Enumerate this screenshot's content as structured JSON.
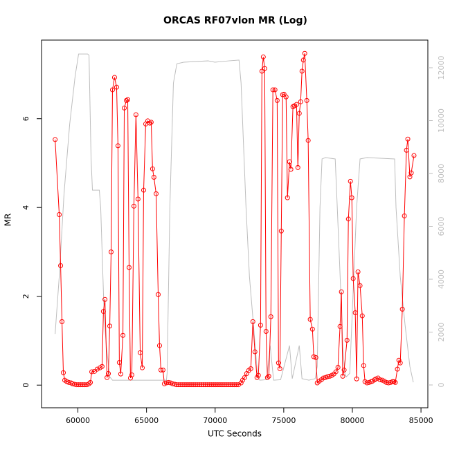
{
  "chart_data": {
    "type": "line",
    "title": "ORCAS RF07vlon MR (Log)",
    "xlabel": "UTC Seconds",
    "ylabel": "MR",
    "xlim": [
      57350,
      85500
    ],
    "xticks": [
      60000,
      65000,
      70000,
      75000,
      80000,
      85000
    ],
    "ylim": [
      -0.51,
      7.77
    ],
    "yticks": [
      0,
      2,
      4,
      6
    ],
    "y2lim": [
      -863,
      13046
    ],
    "y2ticks": [
      0,
      2000,
      4000,
      6000,
      8000,
      10000,
      12000
    ],
    "series": [
      {
        "color": "#bebebe",
        "axis": "y2",
        "markers": false,
        "x": [
          58340,
          58640,
          58990,
          59400,
          59800,
          60050,
          60710,
          60810,
          60960,
          61060,
          61560,
          61660,
          61920,
          62070,
          62320,
          62520,
          66450,
          66500,
          66700,
          66960,
          67210,
          67710,
          69480,
          69980,
          70990,
          71740,
          71890,
          72250,
          72500,
          72750,
          73100,
          73250,
          73760,
          74010,
          74260,
          74770,
          75420,
          75620,
          76130,
          76330,
          76830,
          77290,
          77440,
          77640,
          77790,
          78040,
          78750,
          78900,
          79150,
          79300,
          79450,
          79560,
          79810,
          80060,
          80310,
          80560,
          81070,
          83080,
          83180,
          83490,
          83840,
          84190,
          84440
        ],
        "values": [
          1930,
          4100,
          7240,
          9860,
          11690,
          12520,
          12520,
          12470,
          8550,
          7370,
          7370,
          6720,
          2540,
          1490,
          310,
          180,
          180,
          440,
          6720,
          11420,
          12150,
          12210,
          12260,
          12210,
          12260,
          12290,
          11420,
          6720,
          4100,
          2540,
          310,
          180,
          200,
          1490,
          180,
          200,
          1490,
          240,
          1490,
          240,
          180,
          240,
          700,
          6720,
          8550,
          8600,
          8550,
          6720,
          3580,
          1490,
          440,
          310,
          440,
          3580,
          6720,
          8550,
          8600,
          8550,
          6720,
          4100,
          2270,
          700,
          100
        ]
      },
      {
        "color": "#ff0000",
        "markers": true,
        "x": [
          58340,
          58640,
          58740,
          58840,
          58940,
          59040,
          59190,
          59340,
          59500,
          59600,
          59750,
          59900,
          60050,
          60200,
          60350,
          60500,
          60660,
          60810,
          60910,
          61010,
          61210,
          61410,
          61610,
          61760,
          61860,
          61970,
          62120,
          62220,
          62320,
          62420,
          62520,
          62670,
          62820,
          62920,
          63020,
          63120,
          63280,
          63380,
          63530,
          63630,
          63730,
          63830,
          63930,
          64080,
          64230,
          64380,
          64540,
          64690,
          64790,
          64940,
          65090,
          65240,
          65340,
          65440,
          65540,
          65700,
          65850,
          65950,
          66050,
          66200,
          66300,
          66450,
          66600,
          66750,
          66900,
          67060,
          67200,
          67350,
          67500,
          67650,
          67800,
          67950,
          68100,
          68250,
          68400,
          68550,
          68700,
          68850,
          69000,
          69150,
          69300,
          69450,
          69600,
          69750,
          69900,
          70050,
          70200,
          70350,
          70500,
          70650,
          70800,
          70950,
          71100,
          71250,
          71400,
          71550,
          71700,
          71890,
          72000,
          72150,
          72300,
          72450,
          72600,
          72750,
          72900,
          73050,
          73150,
          73310,
          73410,
          73510,
          73610,
          73710,
          73810,
          73910,
          74060,
          74210,
          74360,
          74520,
          74620,
          74720,
          74820,
          74920,
          75020,
          75170,
          75270,
          75420,
          75520,
          75670,
          75770,
          75930,
          76030,
          76130,
          76230,
          76330,
          76430,
          76530,
          76680,
          76780,
          76930,
          77090,
          77190,
          77340,
          77440,
          77590,
          77740,
          77890,
          78040,
          78190,
          78350,
          78500,
          78650,
          78800,
          78950,
          79100,
          79200,
          79300,
          79400,
          79610,
          79710,
          79860,
          79960,
          80060,
          80210,
          80310,
          80410,
          80560,
          80720,
          80820,
          80920,
          81070,
          81220,
          81370,
          81470,
          81620,
          81720,
          81870,
          82020,
          82180,
          82330,
          82480,
          82630,
          82780,
          82930,
          83030,
          83130,
          83280,
          83390,
          83490,
          83640,
          83790,
          83940,
          84040,
          84190,
          84290,
          84490
        ],
        "values": [
          5.53,
          3.84,
          2.69,
          1.43,
          0.28,
          0.11,
          0.08,
          0.06,
          0.05,
          0.03,
          0.02,
          0.01,
          0.01,
          0.01,
          0.01,
          0.01,
          0.01,
          0.03,
          0.06,
          0.3,
          0.31,
          0.36,
          0.39,
          0.42,
          1.66,
          1.93,
          0.17,
          0.26,
          1.33,
          3.0,
          6.65,
          6.93,
          6.71,
          5.39,
          0.51,
          0.25,
          1.12,
          6.24,
          6.41,
          6.43,
          2.65,
          0.16,
          0.23,
          4.03,
          6.09,
          4.19,
          0.73,
          0.39,
          4.39,
          5.88,
          5.95,
          5.9,
          5.92,
          4.87,
          4.68,
          4.31,
          2.04,
          0.89,
          0.34,
          0.34,
          0.03,
          0.05,
          0.06,
          0.05,
          0.03,
          0.02,
          0.01,
          0.01,
          0.01,
          0.01,
          0.01,
          0.01,
          0.01,
          0.01,
          0.01,
          0.01,
          0.01,
          0.01,
          0.01,
          0.01,
          0.01,
          0.01,
          0.01,
          0.01,
          0.01,
          0.01,
          0.01,
          0.01,
          0.01,
          0.01,
          0.01,
          0.01,
          0.01,
          0.01,
          0.01,
          0.01,
          0.01,
          0.05,
          0.11,
          0.17,
          0.26,
          0.33,
          0.37,
          1.43,
          0.75,
          0.17,
          0.22,
          1.35,
          7.07,
          7.39,
          7.13,
          1.21,
          0.17,
          0.2,
          1.54,
          6.65,
          6.65,
          6.41,
          0.5,
          0.37,
          3.47,
          6.54,
          6.55,
          6.49,
          4.22,
          5.03,
          4.86,
          6.27,
          6.29,
          6.32,
          4.9,
          6.12,
          6.38,
          7.07,
          7.32,
          7.47,
          6.41,
          5.51,
          1.48,
          1.26,
          0.64,
          0.62,
          0.05,
          0.09,
          0.12,
          0.16,
          0.17,
          0.19,
          0.2,
          0.22,
          0.25,
          0.3,
          0.4,
          1.32,
          2.1,
          0.2,
          0.34,
          1.01,
          3.74,
          4.59,
          4.22,
          2.4,
          1.63,
          0.14,
          2.55,
          2.24,
          1.56,
          0.44,
          0.08,
          0.05,
          0.06,
          0.08,
          0.09,
          0.12,
          0.14,
          0.16,
          0.12,
          0.11,
          0.09,
          0.06,
          0.05,
          0.06,
          0.08,
          0.08,
          0.06,
          0.36,
          0.56,
          0.5,
          1.71,
          3.81,
          5.29,
          5.54,
          4.69,
          4.78,
          5.17
        ]
      }
    ]
  }
}
